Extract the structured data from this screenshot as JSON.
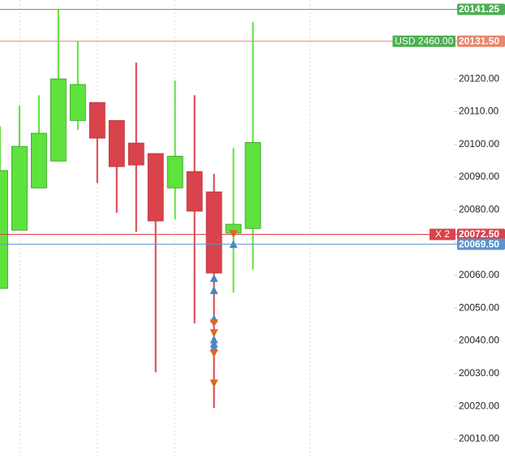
{
  "chart_data": {
    "type": "candlestick",
    "open": [
      20056.0,
      20073.8,
      20086.7,
      20094.9,
      20107.3,
      20112.8,
      20107.3,
      20100.4,
      20097.2,
      20086.7,
      20091.7,
      20085.5,
      20072.9,
      20074.3
    ],
    "high": [
      20105.6,
      20111.8,
      20115.0,
      20141.1,
      20131.7,
      20112.8,
      20107.3,
      20125.0,
      20097.2,
      20119.5,
      20115.0,
      20091.0,
      20098.9,
      20137.4
    ],
    "low": [
      20056.0,
      20073.8,
      20086.7,
      20094.9,
      20104.4,
      20088.2,
      20079.1,
      20073.3,
      20030.4,
      20077.1,
      20045.3,
      20019.5,
      20054.7,
      20061.7
    ],
    "close": [
      20092.0,
      20099.4,
      20103.4,
      20120.0,
      20118.3,
      20101.9,
      20093.2,
      20093.7,
      20076.6,
      20096.4,
      20079.6,
      20060.7,
      20075.6,
      20100.6
    ],
    "up_color": "#5ee23c",
    "down_color": "#d9434b",
    "ylim": [
      20003.9,
      20144.1
    ],
    "yticks": [
      {
        "value": 20010,
        "label": "20010.00"
      },
      {
        "value": 20020,
        "label": "20020.00"
      },
      {
        "value": 20030,
        "label": "20030.00"
      },
      {
        "value": 20040,
        "label": "20040.00"
      },
      {
        "value": 20050,
        "label": "20050.00"
      },
      {
        "value": 20060,
        "label": "20060.00"
      },
      {
        "value": 20070,
        "label": "20070.00"
      },
      {
        "value": 20080,
        "label": "20080.00"
      },
      {
        "value": 20090,
        "label": "20090.00"
      },
      {
        "value": 20100,
        "label": "20100.00"
      },
      {
        "value": 20110,
        "label": "20110.00"
      },
      {
        "value": 20120,
        "label": "20120.00"
      }
    ],
    "price_lines": [
      {
        "value": 20141.25,
        "label": "20141.25",
        "color": "#4caf50"
      },
      {
        "value": 20131.5,
        "label": "20131.50",
        "color": "#e8876a",
        "tag": "USD 2460.00",
        "tag_color": "#4caf50"
      },
      {
        "value": 20072.5,
        "label": "20072.50",
        "color": "#d9434b",
        "tag": "X  2",
        "tag_color": "#d9434b"
      },
      {
        "value": 20069.5,
        "label": "20069.50",
        "color": "#5b93cf"
      }
    ],
    "markers": [
      {
        "x": 11,
        "y": 20059.2,
        "shape": "up",
        "color": "#4a86c5"
      },
      {
        "x": 11,
        "y": 20055.5,
        "shape": "up",
        "color": "#4a86c5"
      },
      {
        "x": 11,
        "y": 20046.8,
        "shape": "up",
        "color": "#4a86c5"
      },
      {
        "x": 11,
        "y": 20040.5,
        "shape": "up",
        "color": "#4a86c5"
      },
      {
        "x": 11,
        "y": 20039.2,
        "shape": "up",
        "color": "#4a86c5"
      },
      {
        "x": 11,
        "y": 20038.0,
        "shape": "up",
        "color": "#4a86c5"
      },
      {
        "x": 11,
        "y": 20045.3,
        "shape": "down",
        "color": "#e0661f"
      },
      {
        "x": 11,
        "y": 20042.3,
        "shape": "down",
        "color": "#e0661f"
      },
      {
        "x": 11,
        "y": 20036.1,
        "shape": "down",
        "color": "#e0661f"
      },
      {
        "x": 11,
        "y": 20026.9,
        "shape": "down",
        "color": "#e0661f"
      },
      {
        "x": 12,
        "y": 20072.6,
        "shape": "down",
        "color": "#e0661f"
      },
      {
        "x": 12,
        "y": 20069.6,
        "shape": "up",
        "color": "#4a86c5"
      }
    ]
  }
}
